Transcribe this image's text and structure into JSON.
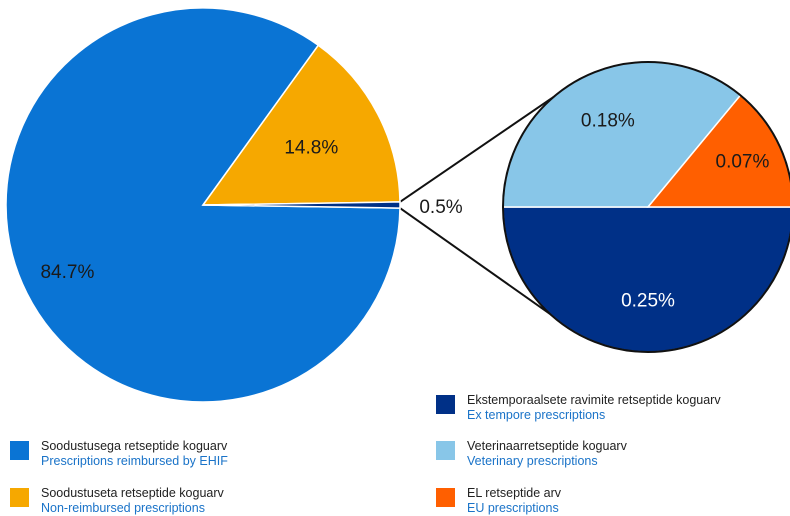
{
  "chart_data": [
    {
      "type": "pie",
      "slices": [
        {
          "label": "Soodustusega retseptide koguarv",
          "label_en": "Prescriptions reimbursed by EHIF",
          "value": 84.7,
          "value_label": "84.7%",
          "color": "#0a74d4"
        },
        {
          "label": "Soodustuseta retseptide koguarv",
          "label_en": "Non-reimbursed prescriptions",
          "value": 14.8,
          "value_label": "14.8%",
          "color": "#f6a800"
        },
        {
          "label": "",
          "value": 0.5,
          "value_label": "0.5%",
          "color": "#003087"
        }
      ]
    },
    {
      "type": "pie",
      "slices": [
        {
          "label": "Ekstemporaalsete ravimite retseptide koguarv",
          "label_en": "Ex tempore prescriptions",
          "value": 0.25,
          "value_label": "0.25%",
          "color": "#003087"
        },
        {
          "label": "Veterinaarretseptide koguarv",
          "label_en": "Veterinary prescriptions",
          "value": 0.18,
          "value_label": "0.18%",
          "color": "#88c6e8"
        },
        {
          "label": "EL retseptide arv",
          "label_en": "EU prescriptions",
          "value": 0.07,
          "value_label": "0.07%",
          "color": "#ff5f00"
        }
      ]
    }
  ],
  "legend": [
    {
      "label": "Soodustusega retseptide koguarv",
      "label_en": "Prescriptions reimbursed by EHIF",
      "color": "#0a74d4"
    },
    {
      "label": "Soodustuseta retseptide koguarv",
      "label_en": "Non-reimbursed prescriptions",
      "color": "#f6a800"
    },
    {
      "label": "Ekstemporaalsete ravimite retseptide koguarv",
      "label_en": "Ex tempore prescriptions",
      "color": "#003087"
    },
    {
      "label": "Veterinaarretseptide koguarv",
      "label_en": "Veterinary prescriptions",
      "color": "#88c6e8"
    },
    {
      "label": "EL retseptide arv",
      "label_en": "EU prescriptions",
      "color": "#ff5f00"
    }
  ]
}
